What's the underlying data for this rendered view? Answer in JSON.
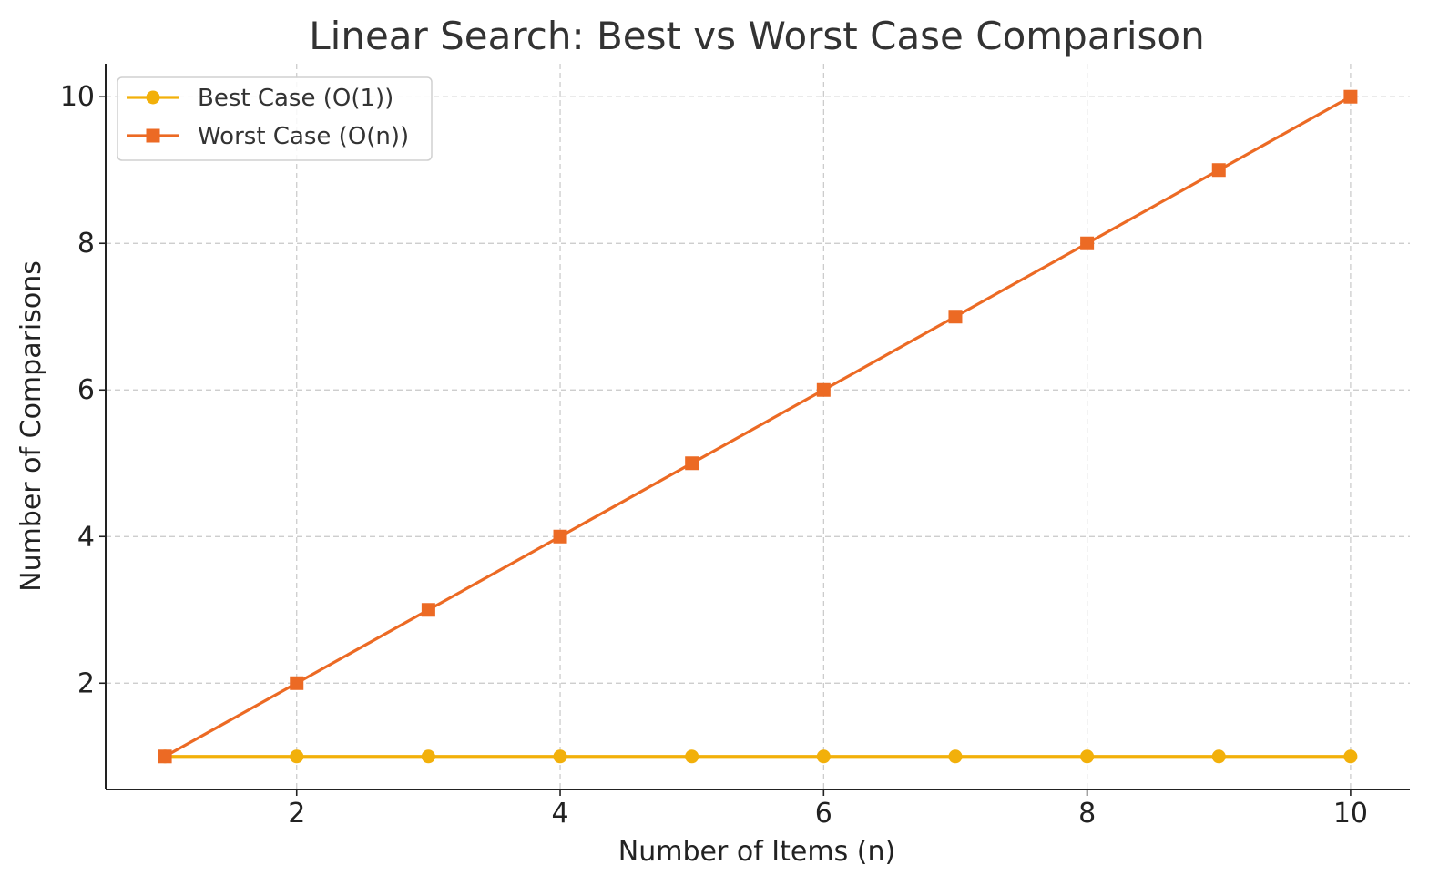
{
  "chart_data": {
    "type": "line",
    "title": "Linear Search: Best vs Worst Case Comparison",
    "xlabel": "Number of Items (n)",
    "ylabel": "Number of Comparisons",
    "x": [
      1,
      2,
      3,
      4,
      5,
      6,
      7,
      8,
      9,
      10
    ],
    "xlim": [
      0.55,
      10.45
    ],
    "ylim": [
      0.55,
      10.45
    ],
    "xticks": [
      2,
      4,
      6,
      8,
      10
    ],
    "yticks": [
      2,
      4,
      6,
      8,
      10
    ],
    "grid": true,
    "legend_position": "top-left",
    "series": [
      {
        "name": "Best Case (O(1))",
        "values": [
          1,
          1,
          1,
          1,
          1,
          1,
          1,
          1,
          1,
          1
        ],
        "color": "#f2b00a",
        "marker": "circle"
      },
      {
        "name": "Worst Case (O(n))",
        "values": [
          1,
          2,
          3,
          4,
          5,
          6,
          7,
          8,
          9,
          10
        ],
        "color": "#ec6a24",
        "marker": "square"
      }
    ]
  }
}
